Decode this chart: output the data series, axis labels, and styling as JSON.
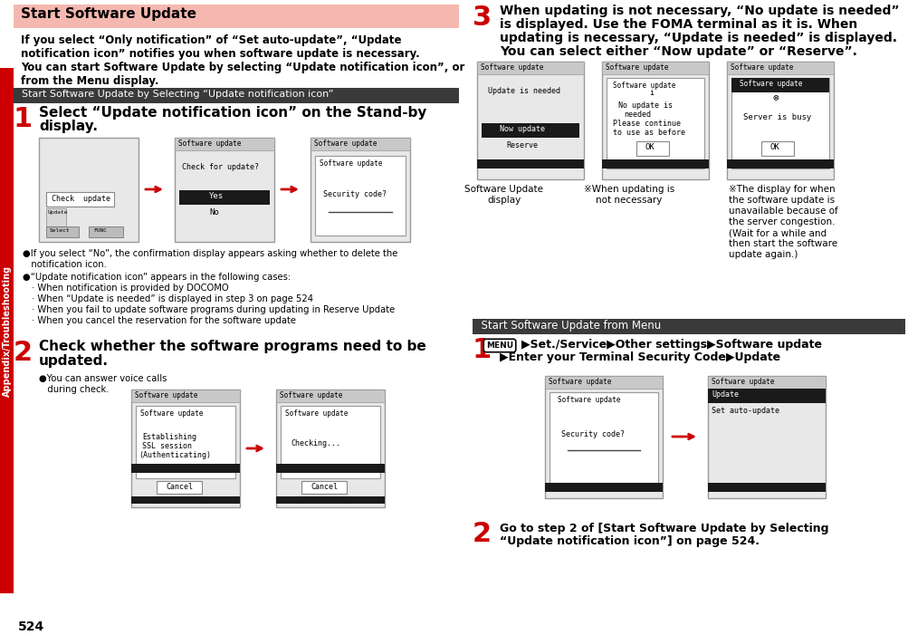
{
  "bg_color": "#ffffff",
  "page_number": "524",
  "left_sidebar_text": "Appendix/Troubleshooting",
  "sidebar_color": "#cc0000",
  "top_header_text": "Start Software Update",
  "top_header_bg": "#f5b8b0",
  "intro_text_line1": "If you select “Only notification” of “Set auto-update”, “Update",
  "intro_text_line2": "notification icon” notifies you when software update is necessary.",
  "intro_text_line3": "You can start Software Update by selecting “Update notification icon”, or",
  "intro_text_line4": "from the Menu display.",
  "section1_header": "  Start Software Update by Selecting “Update notification icon”",
  "section1_header_bg": "#3a3a3a",
  "step1_text_line1": "Select “Update notification icon” on the Stand-by",
  "step1_text_line2": "display.",
  "bullet1": "●If you select “No”, the confirmation display appears asking whether to delete the",
  "bullet1b": "   notification icon.",
  "bullet2": "●“Update notification icon” appears in the following cases:",
  "bullet2_items": [
    "· When notification is provided by DOCOMO",
    "· When “Update is needed” is displayed in step 3 on page 524",
    "· When you fail to update software programs during updating in Reserve Update",
    "· When you cancel the reservation for the software update"
  ],
  "step2_text_line1": "Check whether the software programs need to be",
  "step2_text_line2": "updated.",
  "step2_bullet": "●You can answer voice calls",
  "step2_bullet2": "   during check.",
  "step3_text_line1": "When updating is not necessary, “No update is needed”",
  "step3_text_line2": "is displayed. Use the FOMA terminal as it is. When",
  "step3_text_line3": "updating is necessary, “Update is needed” is displayed.",
  "step3_text_line4": "You can select either “Now update” or “Reserve”.",
  "cap1_line1": "Software Update",
  "cap1_line2": "display",
  "cap2_line1": "※When updating is",
  "cap2_line2": "not necessary",
  "cap3_line1": "※The display for when",
  "cap3_line2": "the software update is",
  "cap3_line3": "unavailable because of",
  "cap3_line4": "the server congestion.",
  "cap3_line5": "(Wait for a while and",
  "cap3_line6": "then start the software",
  "cap3_line7": "update again.)",
  "section2_header": "  Start Software Update from Menu",
  "section2_header_bg": "#3a3a3a",
  "menu1_line1": "▶Set./Service▶Other settings▶Software update",
  "menu1_line2": "▶Enter your Terminal Security Code▶Update",
  "step2r_line1": "Go to step 2 of [Start Software Update by Selecting",
  "step2r_line2": "“Update notification icon”] on page 524.",
  "arrow_color": "#cc0000",
  "dark_bar": "#1a1a1a",
  "screen_gray": "#e8e8e8",
  "screen_border": "#999999"
}
